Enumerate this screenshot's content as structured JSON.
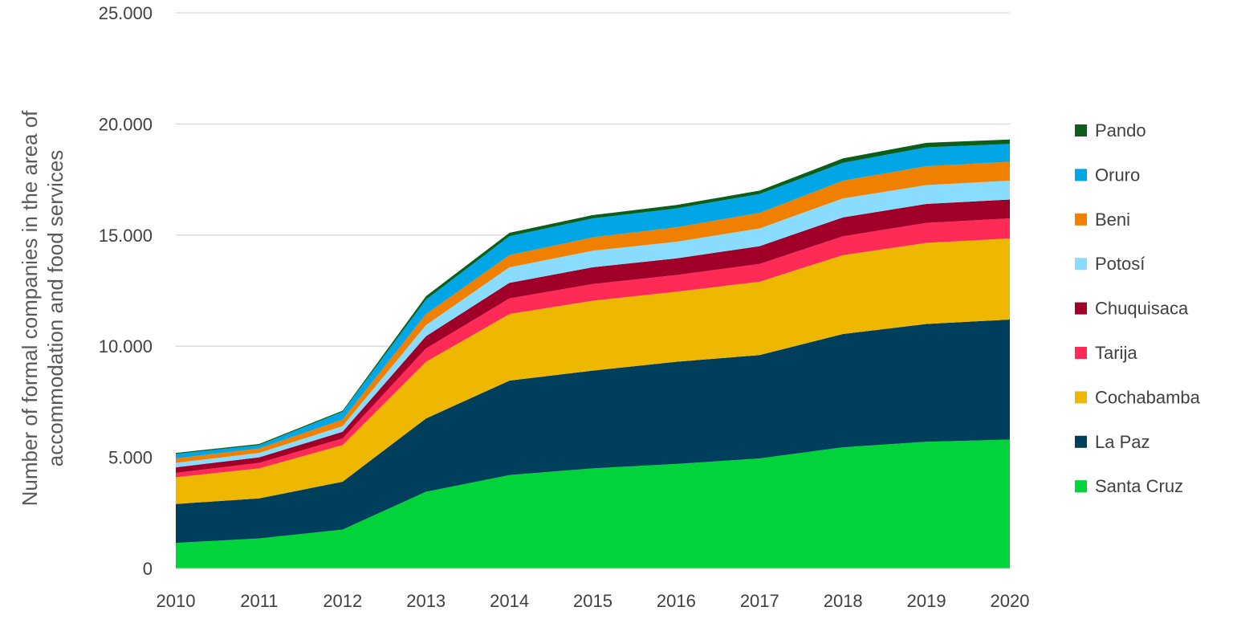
{
  "chart_data": {
    "type": "area",
    "stacked": true,
    "x": [
      "2010",
      "2011",
      "2012",
      "2013",
      "2014",
      "2015",
      "2016",
      "2017",
      "2018",
      "2019",
      "2020"
    ],
    "ylabel_line1": "Number of formal companies in the area of",
    "ylabel_line2": "accommodation and food services",
    "ylim": [
      0,
      25000
    ],
    "yticks": [
      "0",
      "5.000",
      "10.000",
      "15.000",
      "20.000",
      "25.000"
    ],
    "ytick_values": [
      0,
      5000,
      10000,
      15000,
      20000,
      25000
    ],
    "grid": "horizontal",
    "legend_position": "right",
    "series": [
      {
        "name": "Santa Cruz",
        "color": "#00D43A",
        "values": [
          1150,
          1350,
          1750,
          3450,
          4200,
          4500,
          4700,
          4950,
          5450,
          5700,
          5800
        ]
      },
      {
        "name": "La Paz",
        "color": "#003F5C",
        "values": [
          1750,
          1800,
          2150,
          3300,
          4250,
          4400,
          4600,
          4650,
          5100,
          5300,
          5400
        ]
      },
      {
        "name": "Cochabamba",
        "color": "#EEB700",
        "values": [
          1200,
          1350,
          1650,
          2550,
          3000,
          3150,
          3150,
          3300,
          3550,
          3650,
          3650
        ]
      },
      {
        "name": "Tarija",
        "color": "#FF2A55",
        "values": [
          200,
          250,
          300,
          600,
          700,
          750,
          750,
          800,
          850,
          900,
          900
        ]
      },
      {
        "name": "Chuquisaca",
        "color": "#A00028",
        "values": [
          250,
          250,
          300,
          550,
          700,
          750,
          750,
          800,
          850,
          850,
          850
        ]
      },
      {
        "name": "Potosí",
        "color": "#8ADCFF",
        "values": [
          200,
          200,
          250,
          500,
          700,
          750,
          750,
          800,
          850,
          850,
          850
        ]
      },
      {
        "name": "Beni",
        "color": "#F08000",
        "values": [
          200,
          200,
          300,
          500,
          550,
          600,
          650,
          700,
          800,
          850,
          850
        ]
      },
      {
        "name": "Oruro",
        "color": "#00A6E6",
        "values": [
          200,
          150,
          350,
          650,
          850,
          850,
          850,
          850,
          800,
          850,
          800
        ]
      },
      {
        "name": "Pando",
        "color": "#0D5E1A",
        "values": [
          50,
          50,
          50,
          150,
          150,
          150,
          150,
          150,
          200,
          200,
          200
        ]
      }
    ]
  }
}
